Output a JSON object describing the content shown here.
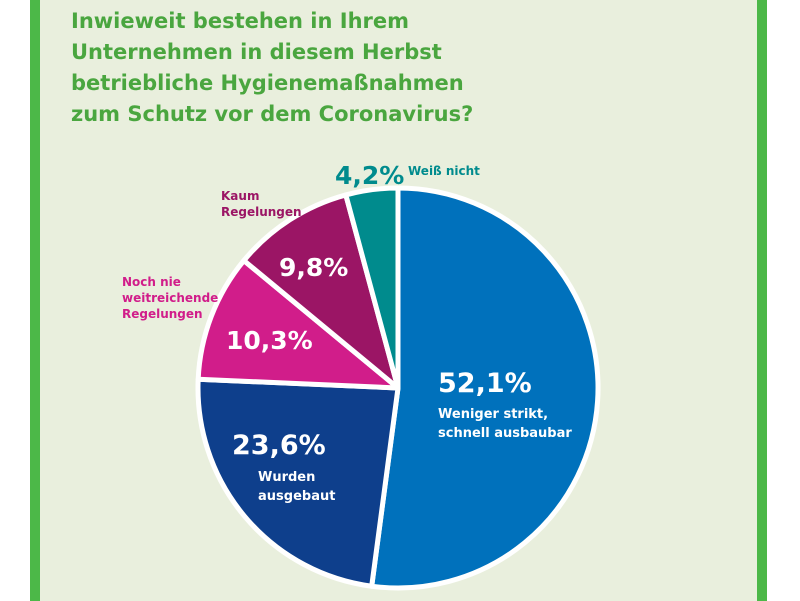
{
  "title_lines": [
    "Inwieweit bestehen in Ihrem",
    "Unternehmen in diesem Herbst",
    "betriebliche Hygienemaßnahmen",
    "zum Schutz vor dem Coronavirus?"
  ],
  "colors": {
    "background": "#e9efdd",
    "frame": "#4cb848",
    "title": "#4aa63f",
    "slice_border": "#ffffff"
  },
  "chart_data": {
    "type": "pie",
    "title": "Inwieweit bestehen in Ihrem Unternehmen in diesem Herbst betriebliche Hygienemaßnahmen zum Schutz vor dem Coronavirus?",
    "start_angle_deg": 0,
    "direction": "clockwise",
    "slices": [
      {
        "key": "weniger",
        "value": 52.1,
        "value_label": "52,1%",
        "label_lines": [
          "Weniger strikt,",
          "schnell ausbaubar"
        ],
        "color": "#0071bc",
        "label_position": "inside"
      },
      {
        "key": "ausgebaut",
        "value": 23.6,
        "value_label": "23,6%",
        "label_lines": [
          "Wurden",
          "ausgebaut"
        ],
        "color": "#0e3f8c",
        "label_position": "inside"
      },
      {
        "key": "noch_nie",
        "value": 10.3,
        "value_label": "10,3%",
        "label_lines": [
          "Noch nie",
          "weitreichende",
          "Regelungen"
        ],
        "color": "#d11d8a",
        "label_position": "outside"
      },
      {
        "key": "kaum",
        "value": 9.8,
        "value_label": "9,8%",
        "label_lines": [
          "Kaum",
          "Regelungen"
        ],
        "color": "#9b1565",
        "label_position": "outside"
      },
      {
        "key": "weiss_nicht",
        "value": 4.2,
        "value_label": "4,2%",
        "label_lines": [
          "Weiß nicht"
        ],
        "color": "#008b8d",
        "label_position": "outside"
      }
    ]
  }
}
